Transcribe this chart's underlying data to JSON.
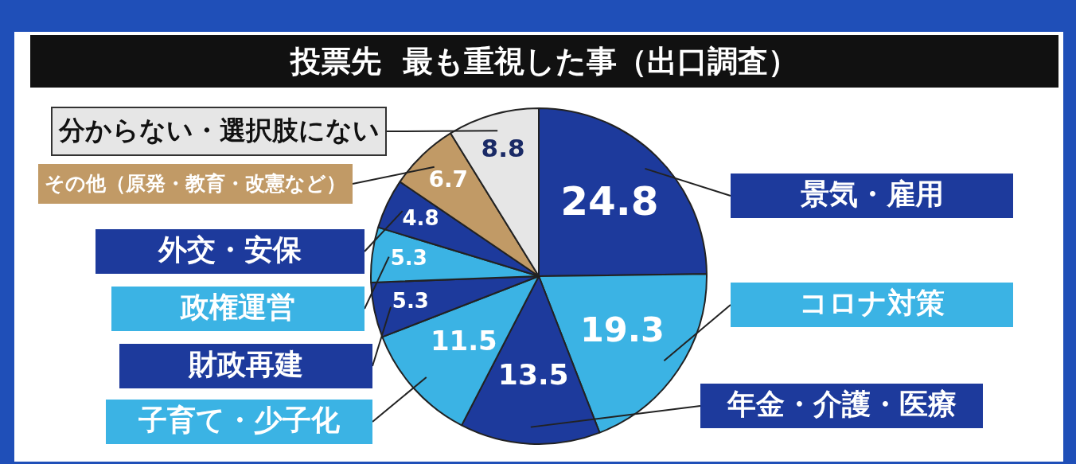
{
  "chart_data": {
    "type": "pie",
    "title": "投票先  最も重視した事（出口調査）",
    "categories": [
      "景気・雇用",
      "コロナ対策",
      "年金・介護・医療",
      "子育て・少子化",
      "財政再建",
      "政権運営",
      "外交・安保",
      "その他（原発・教育・改憲など）",
      "分からない・選択肢にない"
    ],
    "values": [
      24.8,
      19.3,
      13.5,
      11.5,
      5.3,
      5.3,
      4.8,
      6.7,
      8.8
    ],
    "colors": [
      "#1d3a9c",
      "#3bb3e4",
      "#1d3a9c",
      "#3bb3e4",
      "#1d3a9c",
      "#3bb3e4",
      "#1d3a9c",
      "#c19a66",
      "#e6e6e6"
    ],
    "data_labels": true
  }
}
